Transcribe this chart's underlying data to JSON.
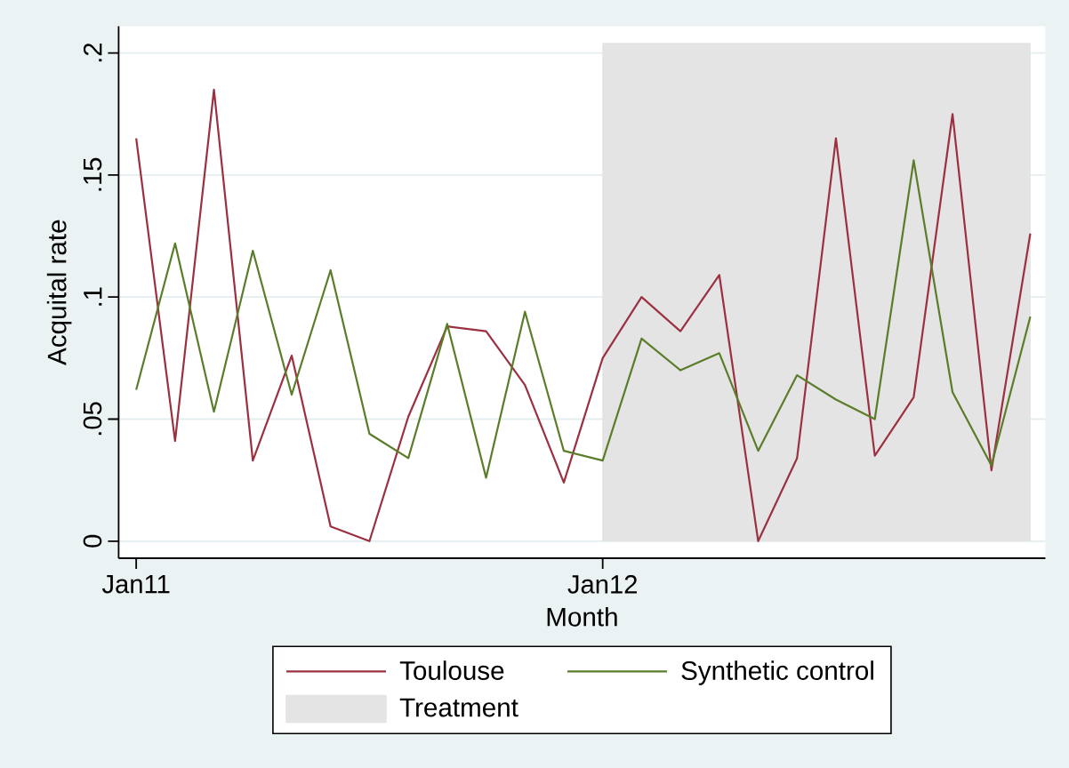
{
  "chart_data": {
    "type": "line",
    "xlabel": "Month",
    "ylabel": "Acquital rate",
    "x": [
      "2011-01",
      "2011-02",
      "2011-03",
      "2011-04",
      "2011-05",
      "2011-06",
      "2011-07",
      "2011-08",
      "2011-09",
      "2011-10",
      "2011-11",
      "2011-12",
      "2012-01",
      "2012-02",
      "2012-03",
      "2012-04",
      "2012-05",
      "2012-06",
      "2012-07",
      "2012-08",
      "2012-09",
      "2012-10",
      "2012-11",
      "2012-12"
    ],
    "series": [
      {
        "name": "Toulouse",
        "color": "#9b3040",
        "values": [
          0.165,
          0.041,
          0.185,
          0.033,
          0.076,
          0.006,
          0.0,
          0.051,
          0.088,
          0.086,
          0.064,
          0.024,
          0.075,
          0.1,
          0.086,
          0.109,
          0.0,
          0.034,
          0.165,
          0.035,
          0.059,
          0.175,
          0.029,
          0.126
        ]
      },
      {
        "name": "Synthetic control",
        "color": "#5a7d2a",
        "values": [
          0.062,
          0.122,
          0.053,
          0.119,
          0.06,
          0.111,
          0.044,
          0.034,
          0.089,
          0.026,
          0.094,
          0.037,
          0.033,
          0.083,
          0.07,
          0.077,
          0.037,
          0.068,
          0.058,
          0.05,
          0.156,
          0.061,
          0.031,
          0.092
        ]
      },
      {
        "name": "Treatment",
        "type": "area",
        "color": "#e4e4e4",
        "values": [
          null,
          null,
          null,
          null,
          null,
          null,
          null,
          null,
          null,
          null,
          null,
          null,
          0.204,
          0.204,
          0.204,
          0.204,
          0.204,
          0.204,
          0.204,
          0.204,
          0.204,
          0.204,
          0.204,
          0.204
        ]
      }
    ],
    "xlim": [
      "2010-12-18",
      "2012-12-13"
    ],
    "xticks": [
      {
        "value": "2011-01",
        "label": "Jan11"
      },
      {
        "value": "2012-01",
        "label": "Jan12"
      }
    ],
    "ylim": [
      -0.007,
      0.211
    ],
    "yticks": [
      0,
      {
        "value": 0.05,
        "label": ".05"
      },
      {
        "value": 0.1,
        "label": ".1"
      },
      {
        "value": 0.15,
        "label": ".15"
      },
      {
        "value": 0.2,
        "label": ".2"
      }
    ],
    "grid": "y",
    "legend": "bottom"
  }
}
